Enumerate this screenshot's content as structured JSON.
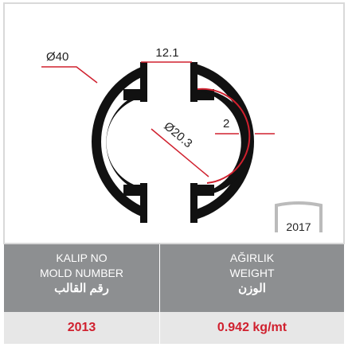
{
  "drawing": {
    "dimensions": {
      "outer_diameter": "Ø40",
      "slot_width": "12.1",
      "inner_diameter": "Ø20.3",
      "wall": "2"
    },
    "badge": "2017"
  },
  "table": {
    "headers": [
      [
        "KALIP NO",
        "MOLD NUMBER",
        "رقم القالب"
      ],
      [
        "AĞIRLIK",
        "WEIGHT",
        "الوزن"
      ]
    ],
    "values": [
      "2013",
      "0.942 kg/mt"
    ]
  }
}
